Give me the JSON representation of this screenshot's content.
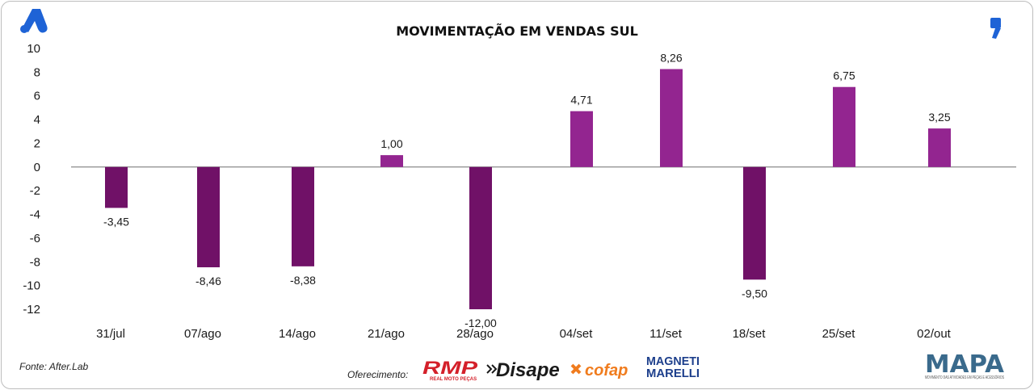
{
  "header": {
    "title": "MOVIMENTAÇÃO EM VENDAS SUL"
  },
  "footer": {
    "source": "Fonte: After.Lab",
    "sponsor_label": "Oferecimento:",
    "sponsors": [
      "RMP",
      "Disape",
      "cofap",
      "MAGNETI",
      "MARELLI"
    ],
    "sponsor_sub": "REAL MOTO PEÇAS",
    "brand": "MAPA",
    "brand_sub": "MOVIMENTO DAS ATIVIDADES EM PEÇAS E ACESSÓRIOS"
  },
  "colors": {
    "negative_bar": "#701167",
    "positive_bar": "#932590",
    "axis_line": "#7f7f7f",
    "brand_blue": "#1e63d6"
  },
  "icons": {
    "top_left": "after-lab-a-logo-icon",
    "top_right": "quote-mark-icon"
  },
  "chart_data": {
    "type": "bar",
    "title": "MOVIMENTAÇÃO EM VENDAS SUL",
    "categories": [
      "31/jul",
      "07/ago",
      "14/ago",
      "21/ago",
      "28/ago",
      "04/set",
      "11/set",
      "18/set",
      "25/set",
      "02/out"
    ],
    "values": [
      -3.45,
      -8.46,
      -8.38,
      1.0,
      -12.0,
      4.71,
      8.26,
      -9.5,
      6.75,
      3.25
    ],
    "data_labels": [
      "-3,45",
      "-8,46",
      "-8,38",
      "1,00",
      "-12,00",
      "4,71",
      "8,26",
      "-9,50",
      "6,75",
      "3,25"
    ],
    "y_ticks": [
      10,
      8,
      6,
      4,
      2,
      0,
      -2,
      -4,
      -6,
      -8,
      -10,
      -12
    ],
    "ylim": [
      -12,
      10
    ],
    "xlabel": "",
    "ylabel": "",
    "grid": false,
    "legend": false
  }
}
